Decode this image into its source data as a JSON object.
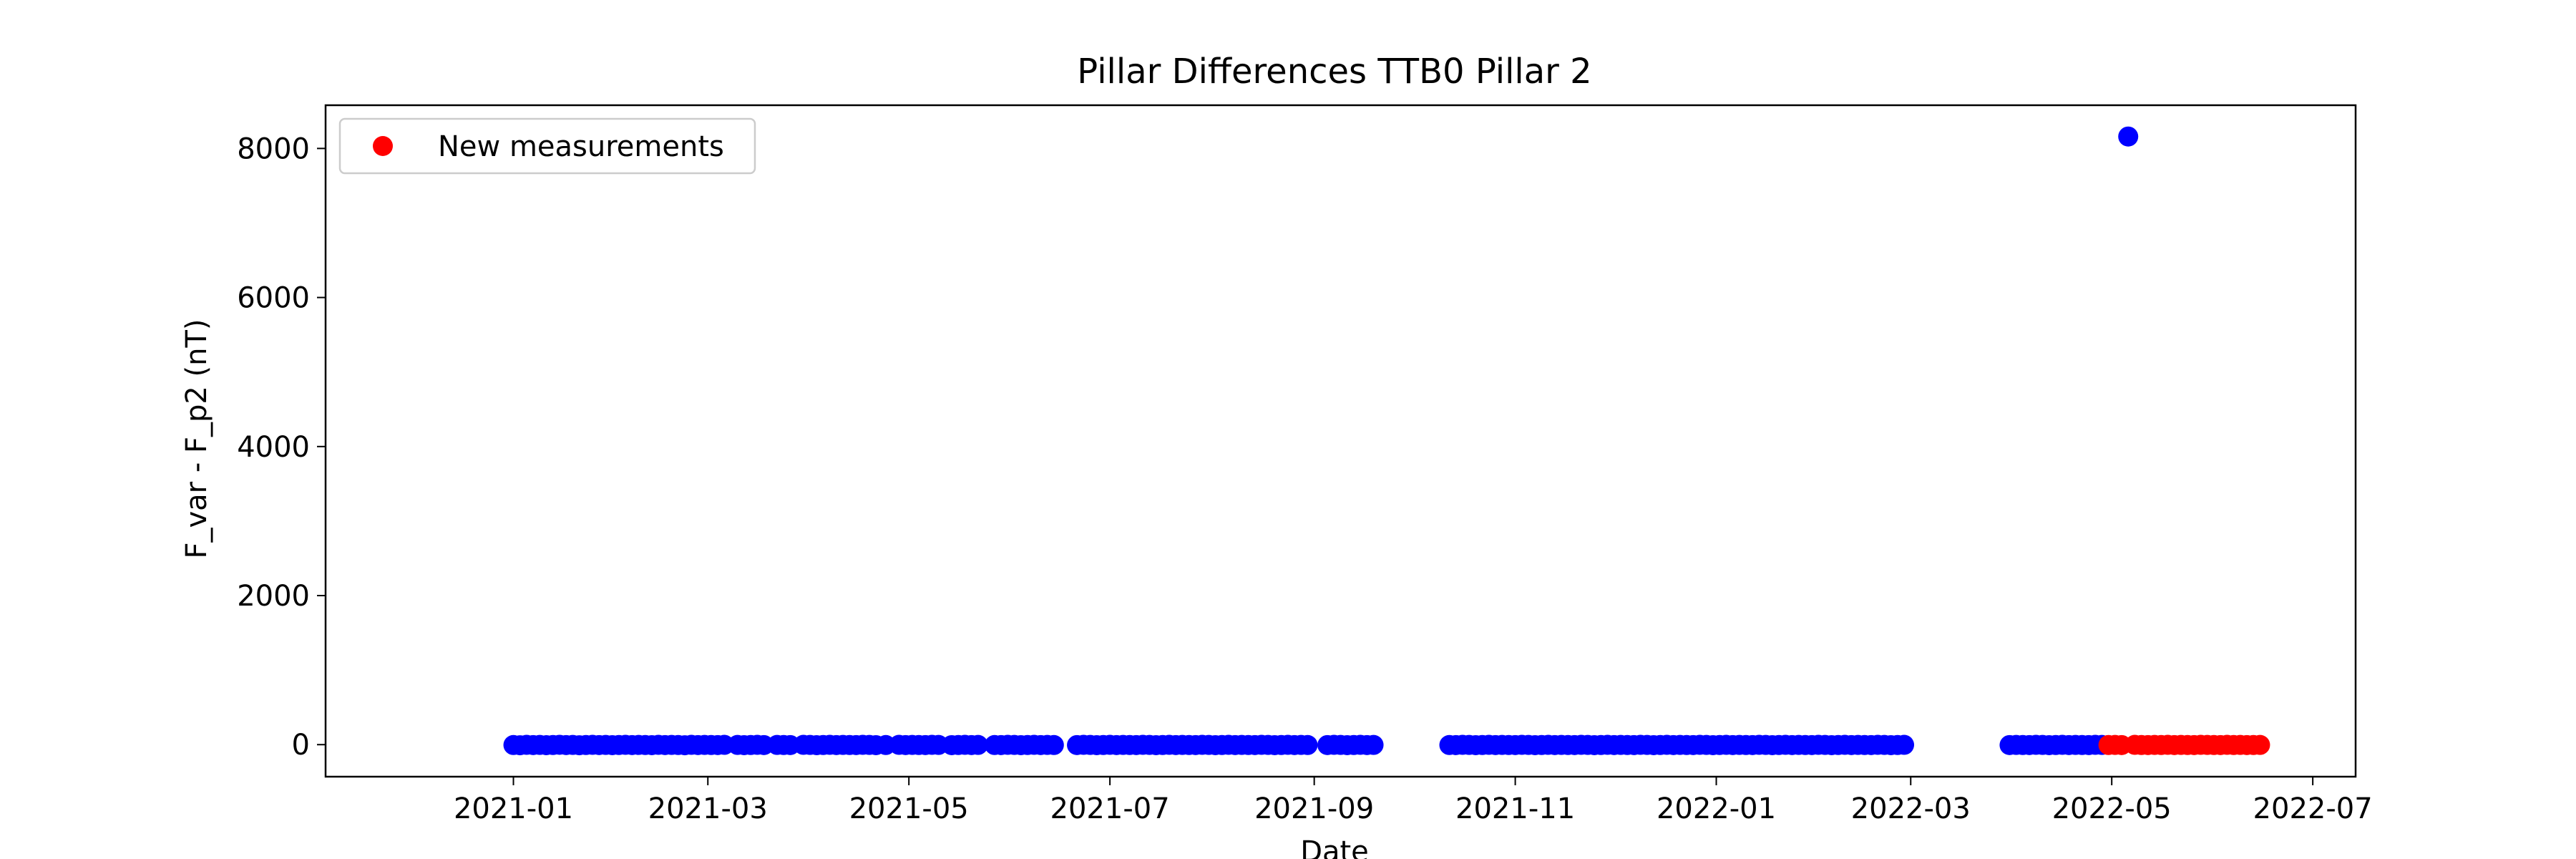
{
  "chart_data": {
    "type": "scatter",
    "title": "Pillar Differences TTB0 Pillar 2",
    "xlabel": "Date",
    "ylabel": "F_var - F_p2 (nT)",
    "x_axis_type": "date",
    "xlim": [
      "2020-11-05",
      "2022-07-14"
    ],
    "ylim": [
      -430,
      8580
    ],
    "x_tick_labels": [
      "2021-01",
      "2021-03",
      "2021-05",
      "2021-07",
      "2021-09",
      "2021-11",
      "2022-01",
      "2022-03",
      "2022-05",
      "2022-07"
    ],
    "x_ticks": [
      "2021-01-01",
      "2021-03-01",
      "2021-05-01",
      "2021-07-01",
      "2021-09-01",
      "2021-11-01",
      "2022-01-01",
      "2022-03-01",
      "2022-05-01",
      "2022-07-01"
    ],
    "y_ticks": [
      0,
      2000,
      4000,
      6000,
      8000
    ],
    "y_tick_labels": [
      "0",
      "2000",
      "4000",
      "6000",
      "8000"
    ],
    "grid": false,
    "legend": {
      "position": "top-left",
      "entries": [
        {
          "label": "New measurements",
          "color": "#ff0000"
        }
      ]
    },
    "series": [
      {
        "color": "#0000ff",
        "x": [
          "2021-01-01",
          "2021-01-03",
          "2021-01-05",
          "2021-01-07",
          "2021-01-09",
          "2021-01-11",
          "2021-01-13",
          "2021-01-15",
          "2021-01-17",
          "2021-01-19",
          "2021-01-21",
          "2021-01-23",
          "2021-01-25",
          "2021-01-27",
          "2021-01-29",
          "2021-01-31",
          "2021-02-02",
          "2021-02-04",
          "2021-02-06",
          "2021-02-08",
          "2021-02-10",
          "2021-02-12",
          "2021-02-14",
          "2021-02-16",
          "2021-02-18",
          "2021-02-20",
          "2021-02-22",
          "2021-02-24",
          "2021-02-26",
          "2021-02-28",
          "2021-03-02",
          "2021-03-04",
          "2021-03-06",
          "2021-03-10",
          "2021-03-12",
          "2021-03-14",
          "2021-03-16",
          "2021-03-18",
          "2021-03-22",
          "2021-03-24",
          "2021-03-26",
          "2021-03-30",
          "2021-04-01",
          "2021-04-03",
          "2021-04-05",
          "2021-04-07",
          "2021-04-09",
          "2021-04-11",
          "2021-04-13",
          "2021-04-15",
          "2021-04-17",
          "2021-04-19",
          "2021-04-21",
          "2021-04-24",
          "2021-04-28",
          "2021-04-30",
          "2021-05-02",
          "2021-05-04",
          "2021-05-06",
          "2021-05-08",
          "2021-05-10",
          "2021-05-14",
          "2021-05-16",
          "2021-05-18",
          "2021-05-20",
          "2021-05-22",
          "2021-05-27",
          "2021-05-29",
          "2021-05-31",
          "2021-06-02",
          "2021-06-04",
          "2021-06-06",
          "2021-06-08",
          "2021-06-10",
          "2021-06-12",
          "2021-06-14",
          "2021-06-21",
          "2021-06-23",
          "2021-06-25",
          "2021-06-27",
          "2021-06-29",
          "2021-07-01",
          "2021-07-03",
          "2021-07-05",
          "2021-07-07",
          "2021-07-09",
          "2021-07-11",
          "2021-07-13",
          "2021-07-15",
          "2021-07-17",
          "2021-07-19",
          "2021-07-21",
          "2021-07-23",
          "2021-07-25",
          "2021-07-27",
          "2021-07-29",
          "2021-07-31",
          "2021-08-02",
          "2021-08-04",
          "2021-08-06",
          "2021-08-08",
          "2021-08-10",
          "2021-08-12",
          "2021-08-14",
          "2021-08-16",
          "2021-08-18",
          "2021-08-20",
          "2021-08-22",
          "2021-08-24",
          "2021-08-26",
          "2021-08-28",
          "2021-08-30",
          "2021-09-05",
          "2021-09-07",
          "2021-09-09",
          "2021-09-11",
          "2021-09-13",
          "2021-09-15",
          "2021-09-17",
          "2021-09-19",
          "2021-10-12",
          "2021-10-14",
          "2021-10-16",
          "2021-10-18",
          "2021-10-20",
          "2021-10-22",
          "2021-10-24",
          "2021-10-26",
          "2021-10-28",
          "2021-10-30",
          "2021-11-01",
          "2021-11-03",
          "2021-11-05",
          "2021-11-07",
          "2021-11-09",
          "2021-11-11",
          "2021-11-13",
          "2021-11-15",
          "2021-11-17",
          "2021-11-19",
          "2021-11-21",
          "2021-11-23",
          "2021-11-25",
          "2021-11-27",
          "2021-11-29",
          "2021-12-01",
          "2021-12-03",
          "2021-12-05",
          "2021-12-07",
          "2021-12-09",
          "2021-12-11",
          "2021-12-13",
          "2021-12-15",
          "2021-12-17",
          "2021-12-19",
          "2021-12-21",
          "2021-12-23",
          "2021-12-25",
          "2021-12-27",
          "2021-12-29",
          "2021-12-31",
          "2022-01-02",
          "2022-01-04",
          "2022-01-06",
          "2022-01-08",
          "2022-01-10",
          "2022-01-12",
          "2022-01-14",
          "2022-01-16",
          "2022-01-18",
          "2022-01-20",
          "2022-01-22",
          "2022-01-24",
          "2022-01-26",
          "2022-01-28",
          "2022-01-30",
          "2022-02-01",
          "2022-02-03",
          "2022-02-05",
          "2022-02-07",
          "2022-02-09",
          "2022-02-11",
          "2022-02-13",
          "2022-02-15",
          "2022-02-17",
          "2022-02-19",
          "2022-02-21",
          "2022-02-23",
          "2022-02-25",
          "2022-02-27",
          "2022-03-31",
          "2022-04-02",
          "2022-04-04",
          "2022-04-06",
          "2022-04-08",
          "2022-04-10",
          "2022-04-12",
          "2022-04-14",
          "2022-04-16",
          "2022-04-18",
          "2022-04-20",
          "2022-04-22",
          "2022-04-24",
          "2022-04-26",
          "2022-04-28",
          "2022-05-06"
        ],
        "y": [
          -5,
          -8,
          -3,
          -6,
          -4,
          -7,
          -5,
          -2,
          -6,
          -4,
          -8,
          -5,
          -3,
          -6,
          -4,
          -7,
          -5,
          -3,
          -6,
          -4,
          -5,
          -7,
          -3,
          -6,
          -4,
          -5,
          -8,
          -3,
          -6,
          -4,
          -5,
          -6,
          -3,
          -4,
          -7,
          -5,
          -3,
          -6,
          -4,
          -5,
          -6,
          -3,
          -4,
          -7,
          -5,
          -3,
          -6,
          -4,
          -5,
          -6,
          -3,
          -4,
          -7,
          -5,
          -3,
          -6,
          -4,
          -5,
          -6,
          -3,
          -4,
          -7,
          -5,
          -3,
          -6,
          -4,
          -5,
          -6,
          -3,
          -4,
          -7,
          -5,
          -3,
          -6,
          -4,
          -5,
          -6,
          -3,
          -4,
          -7,
          -5,
          -3,
          -6,
          -4,
          -5,
          -6,
          -3,
          -4,
          -7,
          -5,
          -3,
          -6,
          -4,
          -5,
          -6,
          -3,
          -4,
          -7,
          -5,
          -3,
          -6,
          -4,
          -5,
          -6,
          -3,
          -4,
          -7,
          -5,
          -3,
          -6,
          -4,
          -5,
          -6,
          -3,
          -4,
          -7,
          -5,
          -3,
          -6,
          -4,
          -5,
          -6,
          -3,
          -4,
          -7,
          -5,
          -3,
          -6,
          -4,
          -5,
          -6,
          -3,
          -4,
          -7,
          -5,
          -3,
          -6,
          -4,
          -5,
          -6,
          -3,
          -4,
          -7,
          -5,
          -3,
          -6,
          -4,
          -5,
          -6,
          -3,
          -4,
          -7,
          -5,
          -3,
          -6,
          -4,
          -5,
          -6,
          -3,
          -4,
          -7,
          -5,
          -3,
          -6,
          -4,
          -5,
          -6,
          -3,
          -4,
          -7,
          -5,
          -3,
          -6,
          -4,
          -5,
          -6,
          -3,
          -4,
          -7,
          -5,
          -3,
          -6,
          -4,
          -5,
          -6,
          -3,
          -4,
          -7,
          -5,
          -3,
          -6,
          -4,
          -5,
          -6,
          -3,
          -4,
          -7,
          -5,
          -3,
          -6,
          -4,
          -5,
          -6,
          -3,
          -4,
          8160
        ]
      },
      {
        "name": "New measurements",
        "color": "#ff0000",
        "x": [
          "2022-04-30",
          "2022-05-02",
          "2022-05-04",
          "2022-05-08",
          "2022-05-10",
          "2022-05-12",
          "2022-05-14",
          "2022-05-16",
          "2022-05-18",
          "2022-05-20",
          "2022-05-22",
          "2022-05-24",
          "2022-05-26",
          "2022-05-28",
          "2022-05-30",
          "2022-06-01",
          "2022-06-03",
          "2022-06-05",
          "2022-06-07",
          "2022-06-09",
          "2022-06-11",
          "2022-06-13",
          "2022-06-15"
        ],
        "y": [
          -5,
          -4,
          -6,
          -3,
          -5,
          -6,
          -4,
          -5,
          -3,
          -6,
          -4,
          -5,
          -6,
          -3,
          -4,
          -5,
          -6,
          -3,
          -5,
          -4,
          -6,
          -5,
          -4
        ]
      }
    ]
  },
  "colors": {
    "axes": "#000000",
    "background": "#ffffff"
  }
}
